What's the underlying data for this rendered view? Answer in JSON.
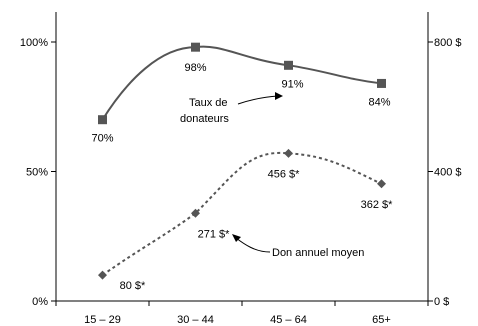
{
  "chart_data": {
    "type": "line",
    "categories": [
      "15 – 29",
      "30 – 44",
      "45 – 64",
      "65+"
    ],
    "left_axis": {
      "ticks": [
        "0%",
        "50%",
        "100%"
      ],
      "range": [
        0,
        100
      ]
    },
    "right_axis": {
      "ticks": [
        "0 $",
        "400 $",
        "800 $"
      ],
      "range": [
        0,
        800
      ]
    },
    "series": [
      {
        "name": "Taux de donateurs",
        "axis": "left",
        "style": "solid",
        "marker": "square",
        "values": [
          70,
          98,
          91,
          84
        ],
        "labels": [
          "70%",
          "98%",
          "91%",
          "84%"
        ]
      },
      {
        "name": "Don annuel moyen",
        "axis": "right",
        "style": "dashed",
        "marker": "diamond",
        "values": [
          80,
          271,
          456,
          362
        ],
        "labels": [
          "80 $*",
          "271 $*",
          "456 $*",
          "362 $*"
        ]
      }
    ],
    "annotations": {
      "rate_line1": "Taux de",
      "rate_line2": "donateurs",
      "donation": "Don annuel moyen"
    },
    "grid": false,
    "legend": "none"
  }
}
